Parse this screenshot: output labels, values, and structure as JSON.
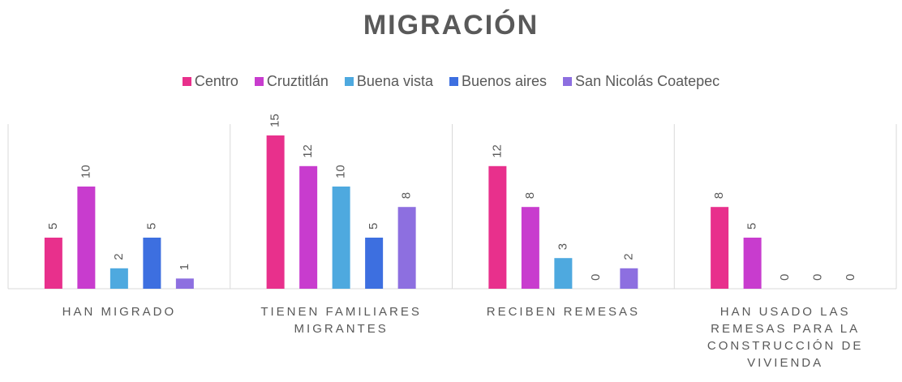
{
  "chart_data": {
    "type": "bar",
    "title": "MIGRACIÓN",
    "categories": [
      "HAN MIGRADO",
      "TIENEN FAMILIARES MIGRANTES",
      "RECIBEN REMESAS",
      "HAN USADO LAS REMESAS PARA LA CONSTRUCCIÓN DE VIVIENDA"
    ],
    "series": [
      {
        "name": "Centro",
        "color": "#e8308c",
        "values": [
          5,
          15,
          12,
          8
        ]
      },
      {
        "name": "Cruztitlán",
        "color": "#c83cce",
        "values": [
          10,
          12,
          8,
          5
        ]
      },
      {
        "name": "Buena vista",
        "color": "#4ea9df",
        "values": [
          2,
          10,
          3,
          0
        ]
      },
      {
        "name": "Buenos aires",
        "color": "#3d6fe0",
        "values": [
          5,
          5,
          0,
          0
        ]
      },
      {
        "name": "San Nicolás Coatepec",
        "color": "#8d6fe0",
        "values": [
          1,
          8,
          2,
          0
        ]
      }
    ],
    "legend": "top"
  }
}
